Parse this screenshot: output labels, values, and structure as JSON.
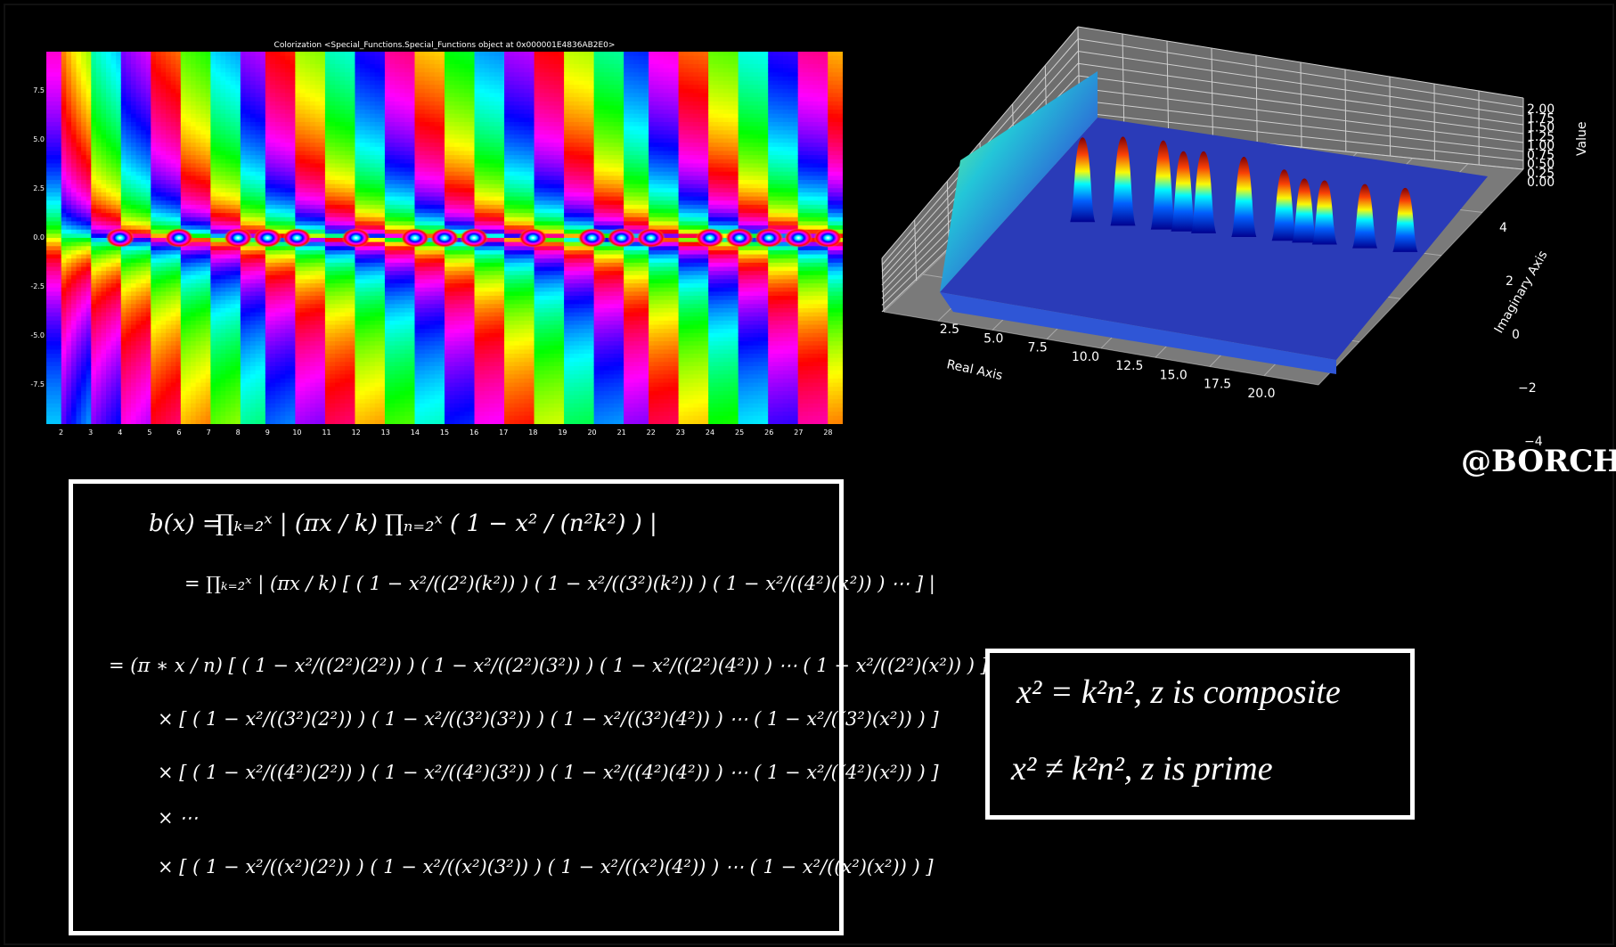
{
  "chart_data": [
    {
      "type": "heatmap",
      "title": "Colorization <Special_Functions.Special_Functions object at 0x000001E4836AB2E0>",
      "x_ticks": [
        "2",
        "3",
        "4",
        "5",
        "6",
        "7",
        "8",
        "9",
        "10",
        "11",
        "12",
        "13",
        "14",
        "15",
        "16",
        "17",
        "18",
        "19",
        "20",
        "21",
        "22",
        "23",
        "24",
        "25",
        "26",
        "27",
        "28"
      ],
      "y_ticks": [
        "7.5",
        "5.0",
        "2.5",
        "0.0",
        "-2.5",
        "-5.0",
        "-7.5"
      ],
      "xlim": [
        1.5,
        28.5
      ],
      "ylim": [
        -9.5,
        9.5
      ],
      "zeros_on_real_axis": [
        4,
        6,
        8,
        9,
        10,
        12,
        14,
        15,
        16,
        18,
        20,
        21,
        22,
        24,
        25,
        26,
        27,
        28
      ],
      "colormap": "hsv"
    },
    {
      "type": "surface",
      "xlabel": "Real Axis",
      "ylabel": "Imaginary Axis",
      "zlabel": "Value",
      "x_ticks": [
        "2.5",
        "5.0",
        "7.5",
        "10.0",
        "12.5",
        "15.0",
        "17.5",
        "20.0"
      ],
      "y_ticks": [
        "4",
        "2",
        "0",
        "−2",
        "−4"
      ],
      "z_ticks": [
        "2.00",
        "1.75",
        "1.50",
        "1.25",
        "1.00",
        "0.75",
        "0.50",
        "0.25",
        "0.00"
      ],
      "peaks_x": [
        4,
        6,
        8,
        9,
        10,
        12,
        14,
        15,
        16,
        18,
        20
      ],
      "zlim": [
        0,
        2
      ],
      "colormap": "jet"
    }
  ],
  "watermark": "@BORCH",
  "formula": {
    "line1_lhs": "b(x) =",
    "line1": "∏ₖ₌₂ˣ | (πx / k) ∏ₙ₌₂ˣ ( 1 − x² / (n²k²) ) |",
    "line2": "= ∏ₖ₌₂ˣ | (πx / k) [ ( 1 − x²/((2²)(k²)) ) ( 1 − x²/((3²)(k²)) ) ( 1 − x²/((4²)(k²)) ) ⋯ ] |",
    "line3": "= (π ∗ x / n) [ ( 1 − x²/((2²)(2²)) ) ( 1 − x²/((2²)(3²)) ) ( 1 − x²/((2²)(4²)) ) ⋯ ( 1 − x²/((2²)(x²)) ) ]",
    "line4": "× [ ( 1 − x²/((3²)(2²)) ) ( 1 − x²/((3²)(3²)) ) ( 1 − x²/((3²)(4²)) ) ⋯ ( 1 − x²/((3²)(x²)) ) ]",
    "line5": "× [ ( 1 − x²/((4²)(2²)) ) ( 1 − x²/((4²)(3²)) ) ( 1 − x²/((4²)(4²)) ) ⋯ ( 1 − x²/((4²)(x²)) ) ]",
    "line6": "× ⋯",
    "line7": "× [ ( 1 − x²/((x²)(2²)) ) ( 1 − x²/((x²)(3²)) ) ( 1 − x²/((x²)(4²)) ) ⋯ ( 1 − x²/((x²)(x²)) ) ]"
  },
  "result": {
    "composite": "x² = k²n²,  z is composite",
    "prime": "x² ≠ k²n²,  z is prime"
  },
  "colors": {
    "background": "#000000",
    "frame": "#ffffff",
    "pane": "#6e6e6e",
    "surface_base": "#2a3bb8"
  }
}
